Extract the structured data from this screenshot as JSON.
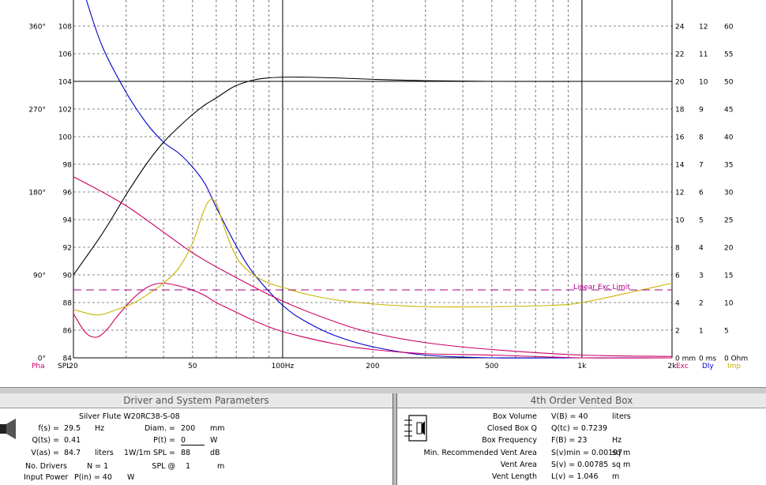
{
  "chart_data": {
    "type": "line",
    "x_scale": "log",
    "xlim": [
      20,
      2000
    ],
    "ylim": [
      84,
      110
    ],
    "x_ticks": [
      "20",
      "50",
      "100Hz",
      "200",
      "500",
      "1k",
      "2k"
    ],
    "y_ticks": [
      "84",
      "86",
      "88",
      "90",
      "92",
      "94",
      "96",
      "98",
      "100",
      "102",
      "104",
      "106",
      "108"
    ],
    "left_axis_label": "SPL",
    "phase_label": "Pha",
    "phase_ticks": [
      "0°",
      "90°",
      "180°",
      "270°",
      "360°"
    ],
    "right_axes": [
      {
        "label": "Exc",
        "color": "#cc0066",
        "ticks": [
          "24",
          "22",
          "20",
          "18",
          "16",
          "14",
          "12",
          "10",
          "8",
          "6",
          "4",
          "2",
          "0 mm"
        ]
      },
      {
        "label": "Dly",
        "color": "#0000cc",
        "ticks": [
          "12",
          "11",
          "10",
          "9",
          "8",
          "7",
          "6",
          "5",
          "4",
          "3",
          "2",
          "1",
          "0 ms"
        ]
      },
      {
        "label": "Imp",
        "color": "#c8b400",
        "ticks": [
          "60",
          "55",
          "50",
          "45",
          "40",
          "35",
          "30",
          "25",
          "20",
          "15",
          "10",
          "5",
          "0 Ohm"
        ]
      }
    ],
    "annotation": "Linear Exc Limit",
    "series": [
      {
        "color": "#000000",
        "x": [
          20,
          25,
          30,
          35,
          40,
          45,
          50,
          55,
          60,
          65,
          70,
          80,
          90,
          100,
          120,
          150,
          200,
          300,
          500,
          1000,
          2000
        ],
        "y": [
          90.0,
          93.0,
          95.8,
          98.0,
          99.6,
          100.7,
          101.6,
          102.3,
          102.8,
          103.3,
          103.7,
          104.1,
          104.25,
          104.3,
          104.3,
          104.25,
          104.15,
          104.05,
          104.0,
          104.0,
          104.0
        ]
      },
      {
        "color": "#0000cc",
        "x": [
          22,
          25,
          30,
          35,
          40,
          45,
          50,
          55,
          60,
          70,
          80,
          100,
          120,
          150,
          200,
          300,
          500,
          1000,
          2000
        ],
        "y": [
          110,
          106.5,
          103.2,
          101.0,
          99.6,
          98.8,
          97.8,
          96.6,
          94.9,
          92.1,
          90.1,
          87.8,
          86.6,
          85.6,
          84.8,
          84.2,
          84.0,
          84.0,
          84.0
        ]
      },
      {
        "color": "#cc0066",
        "x": [
          20,
          30,
          50,
          70,
          100,
          150,
          200,
          300,
          500,
          1000,
          2000
        ],
        "y": [
          97.1,
          95.0,
          91.6,
          89.8,
          88.1,
          86.6,
          85.8,
          85.1,
          84.6,
          84.2,
          84.1
        ]
      },
      {
        "color": "#cc0066",
        "x": [
          20,
          22,
          24,
          26,
          28,
          32,
          36,
          40,
          45,
          50,
          55,
          60,
          70,
          80,
          100,
          150,
          200,
          300,
          500,
          1000,
          2000
        ],
        "y": [
          87.2,
          85.8,
          85.5,
          86.1,
          87.0,
          88.4,
          89.2,
          89.4,
          89.2,
          88.9,
          88.5,
          88.0,
          87.3,
          86.7,
          85.9,
          85.0,
          84.6,
          84.3,
          84.2,
          84.0,
          84.0
        ]
      },
      {
        "color": "#c8b400",
        "x": [
          20,
          24,
          28,
          32,
          36,
          40,
          45,
          50,
          54,
          57,
          60,
          63,
          67,
          72,
          80,
          90,
          100,
          120,
          150,
          200,
          300,
          500,
          800,
          1000,
          1500,
          2000
        ],
        "y": [
          87.5,
          87.1,
          87.5,
          88.0,
          88.7,
          89.4,
          90.5,
          92.3,
          94.4,
          95.4,
          95.2,
          93.8,
          92.2,
          90.9,
          90.0,
          89.4,
          89.1,
          88.6,
          88.2,
          87.9,
          87.7,
          87.7,
          87.8,
          88.0,
          88.8,
          89.4
        ]
      }
    ]
  },
  "driver_panel": {
    "title": "Driver and System Parameters",
    "driver_name": "Silver Flute  W20RC38-S-08",
    "fs_label": "f(s) =",
    "fs_value": "29.5",
    "fs_unit": "Hz",
    "qts_label": "Q(ts) =",
    "qts_value": "0.41",
    "vas_label": "V(as) =",
    "vas_value": "84.7",
    "vas_unit": "liters",
    "drivers_label": "No. Drivers",
    "drivers_value": "N = 1",
    "power_label": "Input Power",
    "power_value": "P(in) = 40",
    "power_unit": "W",
    "diam_label": "Diam. =",
    "diam_value": "200",
    "diam_unit": "mm",
    "pt_label": "P(t) =",
    "pt_value": "0",
    "pt_unit": "W",
    "spl_label": "1W/1m SPL =",
    "spl_value": "88",
    "spl_unit": "dB",
    "splat_label": "SPL @",
    "splat_value": "1",
    "splat_unit": "m"
  },
  "box_panel": {
    "title": "4th Order Vented Box",
    "rows": [
      {
        "label": "Box Volume",
        "sym": "V(B) = 40",
        "unit": "liters"
      },
      {
        "label": "Closed Box Q",
        "sym": "Q(tc) = 0.7239",
        "unit": ""
      },
      {
        "label": "Box Frequency",
        "sym": "F(B) = 23",
        "unit": "Hz"
      },
      {
        "label": "Min. Recommended Vent Area",
        "sym": "S(v)min = 0.00197",
        "unit": "sq m"
      },
      {
        "label": "Vent Area",
        "sym": "S(v) = 0.00785",
        "unit": "sq m"
      },
      {
        "label": "Vent Length",
        "sym": "L(v) = 1.046",
        "unit": "m"
      }
    ]
  }
}
